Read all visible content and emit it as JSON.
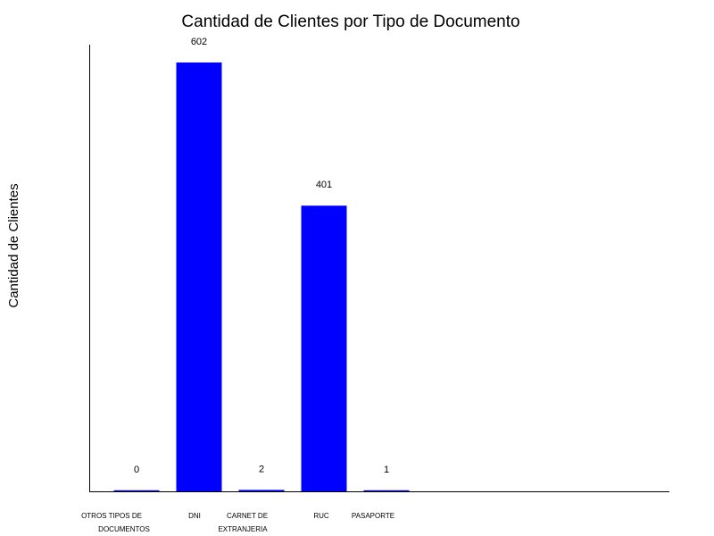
{
  "chart_data": {
    "type": "bar",
    "title": "Cantidad de Clientes por Tipo de Documento",
    "ylabel": "Cantidad de Clientes",
    "xlabel": "",
    "categories": [
      [
        "OTROS TIPOS DE",
        "DOCUMENTOS"
      ],
      [
        "DNI"
      ],
      [
        "CARNET DE",
        "EXTRANJERIA"
      ],
      [
        "RUC"
      ],
      [
        "PASAPORTE"
      ]
    ],
    "values": [
      0,
      602,
      2,
      401,
      1
    ],
    "data_labels": [
      "0",
      "602",
      "2",
      "401",
      "1"
    ],
    "ylim": [
      0,
      627
    ],
    "bar_color": "#0000ff",
    "grid": false,
    "legend": "none"
  }
}
